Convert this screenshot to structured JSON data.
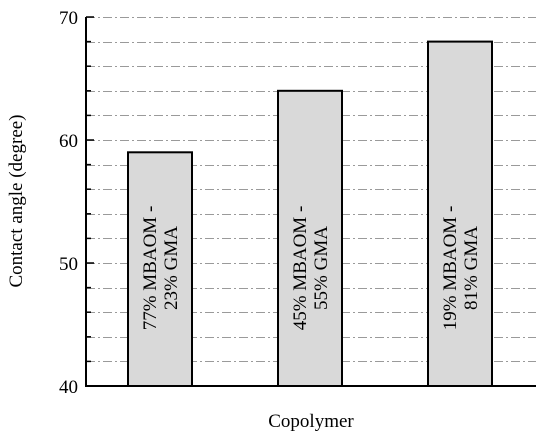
{
  "chart_data": {
    "type": "bar",
    "categories": [
      "77% MBAOM - 23% GMA",
      "45% MBAOM - 55% GMA",
      "19% MBAOM - 81% GMA"
    ],
    "category_label_lines": [
      [
        "77% MBAOM -",
        "23% GMA"
      ],
      [
        "45% MBAOM -",
        "55% GMA"
      ],
      [
        "19% MBAOM -",
        "81% GMA"
      ]
    ],
    "values": [
      59,
      64,
      68
    ],
    "xlabel": "Copolymer",
    "ylabel": "Contact angle (degree)",
    "ylim": [
      40,
      70
    ],
    "yticks": [
      40,
      50,
      60,
      70
    ],
    "y_minor_step": 2,
    "grid": true,
    "bar_color": "#d9d9d9"
  }
}
